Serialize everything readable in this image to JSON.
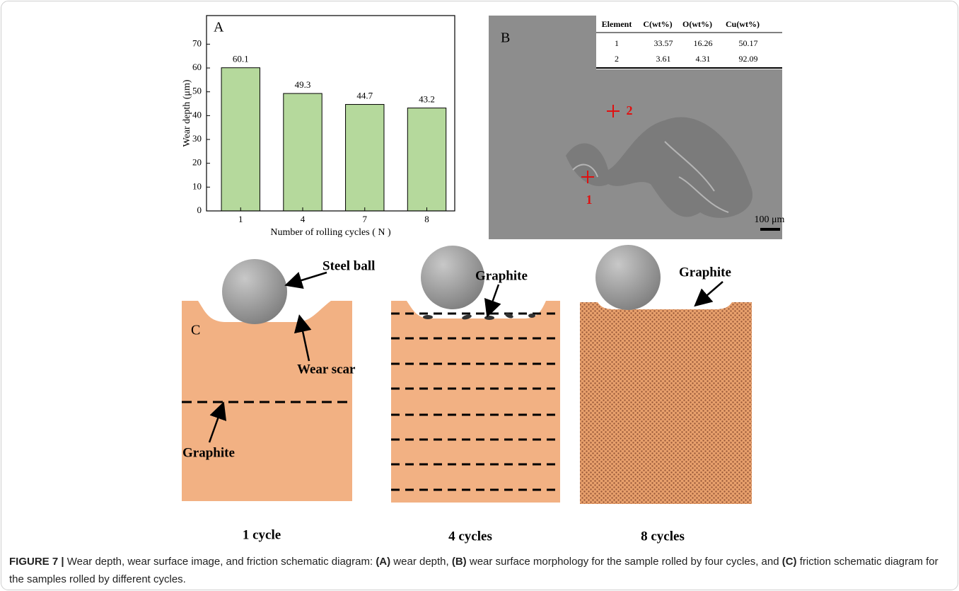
{
  "chart_data": {
    "type": "bar",
    "panel_label": "A",
    "categories": [
      "1",
      "4",
      "7",
      "8"
    ],
    "values": [
      60.1,
      49.3,
      44.7,
      43.2
    ],
    "color": "#b5d99c",
    "xlabel": "Number of rolling cycles ( N )",
    "ylabel": "Wear depth (μm)",
    "ylim": [
      0,
      82
    ],
    "yticks": [
      0,
      10,
      20,
      30,
      40,
      50,
      60,
      70
    ]
  },
  "sem_image": {
    "panel_label": "B",
    "table": {
      "header": [
        "Element",
        "C(wt%)",
        "O(wt%)",
        "Cu(wt%)"
      ],
      "rows": [
        [
          "1",
          "33.57",
          "16.26",
          "50.17"
        ],
        [
          "2",
          "3.61",
          "4.31",
          "92.09"
        ]
      ]
    },
    "points": [
      "1",
      "2"
    ],
    "scale_bar": "100 μm"
  },
  "schematic": {
    "panel_label": "C",
    "annotations": [
      "Steel ball",
      "Wear scar",
      "Graphite",
      "Graphite",
      "Graphite"
    ],
    "stages": [
      "1 cycle",
      "4 cycles",
      "8 cycles"
    ]
  },
  "caption": {
    "parts": [
      {
        "text": "FIGURE 7 | ",
        "bold": true
      },
      {
        "text": "Wear depth, wear surface image, and friction schematic diagram: ",
        "bold": false
      },
      {
        "text": "(A)",
        "bold": true
      },
      {
        "text": " wear depth, ",
        "bold": false
      },
      {
        "text": "(B)",
        "bold": true
      },
      {
        "text": " wear surface morphology for the sample rolled by four cycles, and ",
        "bold": false
      },
      {
        "text": "(C)",
        "bold": true
      },
      {
        "text": " friction schematic diagram for the samples rolled by different cycles.",
        "bold": false
      }
    ]
  }
}
